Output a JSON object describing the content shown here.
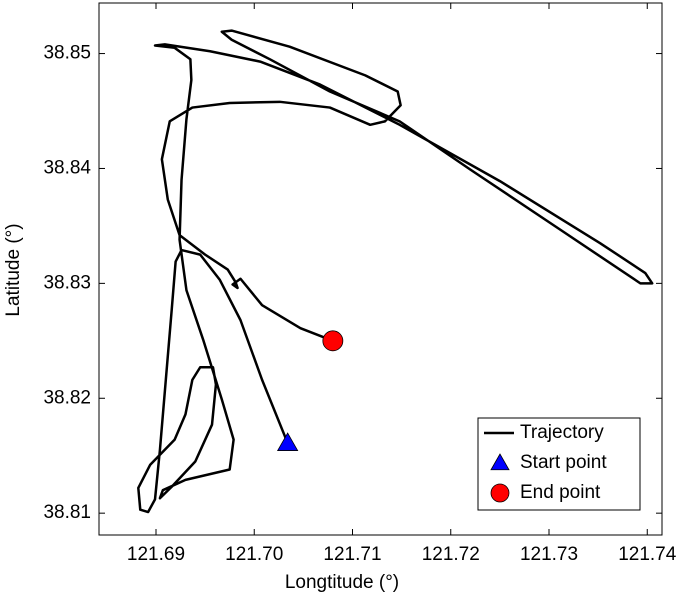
{
  "chart_data": {
    "type": "line",
    "xlabel": "Longtitude (°)",
    "ylabel": "Latitude (°)",
    "xlim": [
      121.6842,
      121.7415
    ],
    "ylim": [
      38.8081,
      38.8544
    ],
    "xticks": [
      121.69,
      {
        "value": 121.7,
        "label": "121.70"
      },
      121.71,
      121.72,
      121.73,
      121.74
    ],
    "yticks": [
      38.81,
      38.82,
      38.83,
      38.84,
      38.85
    ],
    "grid": false,
    "legend": "lower right",
    "series": [
      {
        "name": "Trajectory",
        "color": "#000000",
        "marker": "none",
        "x": [
          121.7034,
          121.7008,
          121.6986,
          121.6965,
          121.6945,
          121.6926,
          121.692,
          121.6916,
          121.691,
          121.6904,
          121.6899,
          121.6892,
          121.6884,
          121.6882,
          121.6894,
          121.6919,
          121.693,
          121.6937,
          121.6945,
          121.6958,
          121.6961,
          121.6957,
          121.694,
          121.6916,
          121.6904,
          121.6907,
          121.693,
          121.6975,
          121.6979,
          121.6967,
          121.6948,
          121.6931,
          121.6924,
          121.6926,
          121.6931,
          121.6936,
          121.6935,
          121.6919,
          121.6899,
          121.6909,
          121.6955,
          121.7006,
          121.7067,
          121.7148,
          121.725,
          121.7352,
          121.7398,
          121.7405,
          121.7393,
          121.7311,
          121.722,
          121.7148,
          121.7077,
          121.7016,
          121.6977,
          121.6967,
          121.6977,
          121.7036,
          121.7113,
          121.7146,
          121.7149,
          121.7133,
          121.7118,
          121.7077,
          121.7026,
          121.6975,
          121.6937,
          121.6914,
          121.6906,
          121.6912,
          121.6924,
          121.695,
          121.6973,
          121.6981,
          121.6983,
          121.6978,
          121.6986,
          121.7008,
          121.7047,
          121.708
        ],
        "values": [
          38.8161,
          38.8216,
          38.8268,
          38.8303,
          38.8325,
          38.8329,
          38.8319,
          38.8277,
          38.8216,
          38.8155,
          38.8112,
          38.8101,
          38.8103,
          38.8122,
          38.8142,
          38.8164,
          38.8186,
          38.8216,
          38.8227,
          38.8227,
          38.8212,
          38.8177,
          38.8145,
          38.8123,
          38.8113,
          38.812,
          38.8129,
          38.8138,
          38.8164,
          38.8199,
          38.8251,
          38.8294,
          38.8338,
          38.839,
          38.8443,
          38.8477,
          38.8495,
          38.8505,
          38.8507,
          38.8508,
          38.8502,
          38.8493,
          38.8473,
          38.8438,
          38.8389,
          38.8335,
          38.8309,
          38.83,
          38.83,
          38.8347,
          38.8399,
          38.8441,
          38.8467,
          38.8495,
          38.8512,
          38.8519,
          38.852,
          38.8506,
          38.8481,
          38.8467,
          38.8455,
          38.8441,
          38.8438,
          38.8453,
          38.8458,
          38.8457,
          38.8453,
          38.8441,
          38.8408,
          38.8373,
          38.8342,
          38.8325,
          38.8312,
          38.8301,
          38.8296,
          38.8299,
          38.8304,
          38.8281,
          38.8261,
          38.825
        ]
      },
      {
        "name": "Start point",
        "color": "#0000ff",
        "marker": "triangle",
        "x": [
          121.7034
        ],
        "values": [
          38.8161
        ]
      },
      {
        "name": "End point",
        "color": "#ff0000",
        "marker": "circle",
        "x": [
          121.708
        ],
        "values": [
          38.825
        ]
      }
    ]
  }
}
